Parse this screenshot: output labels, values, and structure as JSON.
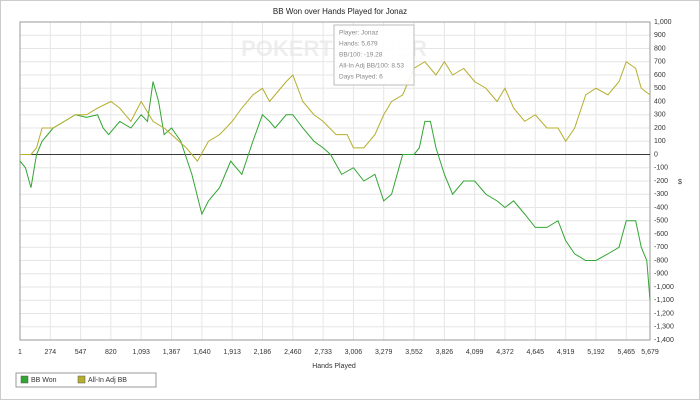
{
  "chart_data": {
    "type": "line",
    "title": "BB Won over Hands Played for Jonaz",
    "watermark": "POKERTRACKER",
    "x_label": "Hands Played",
    "y_label": "$",
    "annotations": [
      "Player: Jonaz",
      "Hands: 5,679",
      "BB/100: -19.28",
      "All-In Adj BB/100: 8.53",
      "Days Played: 6"
    ],
    "legend": "bottom-left",
    "grid": true,
    "xlim": [
      1,
      5679
    ],
    "xticks": [
      1,
      274,
      547,
      820,
      {
        "value": 1093,
        "label": "1,093"
      },
      {
        "value": 1367,
        "label": "1,367"
      },
      {
        "value": 1640,
        "label": "1,640"
      },
      {
        "value": 1913,
        "label": "1,913"
      },
      {
        "value": 2186,
        "label": "2,186"
      },
      {
        "value": 2460,
        "label": "2,460"
      },
      {
        "value": 2733,
        "label": "2,733"
      },
      {
        "value": 3006,
        "label": "3,006"
      },
      {
        "value": 3279,
        "label": "3,279"
      },
      {
        "value": 3552,
        "label": "3,552"
      },
      {
        "value": 3826,
        "label": "3,826"
      },
      {
        "value": 4099,
        "label": "4,099"
      },
      {
        "value": 4372,
        "label": "4,372"
      },
      {
        "value": 4645,
        "label": "4,645"
      },
      {
        "value": 4919,
        "label": "4,919"
      },
      {
        "value": 5192,
        "label": "5,192"
      },
      {
        "value": 5465,
        "label": "5,465"
      },
      {
        "value": 5679,
        "label": "5,679"
      }
    ],
    "ylim": [
      -1400,
      1000
    ],
    "yticks": [
      {
        "value": -1400,
        "label": "-1,400"
      },
      {
        "value": -1300,
        "label": "-1,300"
      },
      {
        "value": -1200,
        "label": "-1,200"
      },
      {
        "value": -1100,
        "label": "-1,100"
      },
      {
        "value": -1000,
        "label": "-1,000"
      },
      -900,
      -800,
      -700,
      -600,
      -500,
      -400,
      -300,
      -200,
      -100,
      0,
      100,
      200,
      300,
      400,
      500,
      600,
      700,
      800,
      900,
      {
        "value": 1000,
        "label": "1,000"
      }
    ],
    "series": [
      {
        "name": "BB Won",
        "color": "#33a532",
        "x": [
          1,
          50,
          100,
          150,
          200,
          300,
          400,
          500,
          600,
          700,
          750,
          800,
          900,
          1000,
          1093,
          1150,
          1200,
          1250,
          1300,
          1367,
          1450,
          1550,
          1640,
          1700,
          1800,
          1900,
          2000,
          2100,
          2186,
          2250,
          2300,
          2400,
          2460,
          2550,
          2650,
          2733,
          2800,
          2900,
          3006,
          3100,
          3200,
          3279,
          3350,
          3450,
          3552,
          3600,
          3650,
          3700,
          3750,
          3826,
          3900,
          4000,
          4099,
          4200,
          4300,
          4372,
          4450,
          4550,
          4645,
          4750,
          4850,
          4919,
          5000,
          5100,
          5192,
          5300,
          5400,
          5465,
          5550,
          5600,
          5650,
          5679
        ],
        "values": [
          -50,
          -100,
          -250,
          0,
          100,
          200,
          250,
          300,
          280,
          300,
          200,
          150,
          250,
          200,
          300,
          250,
          550,
          400,
          150,
          200,
          100,
          -150,
          -450,
          -350,
          -250,
          -50,
          -150,
          100,
          300,
          250,
          200,
          300,
          300,
          200,
          100,
          50,
          0,
          -150,
          -100,
          -200,
          -150,
          -350,
          -300,
          0,
          0,
          50,
          250,
          250,
          50,
          -150,
          -300,
          -200,
          -200,
          -300,
          -350,
          -400,
          -350,
          -450,
          -550,
          -550,
          -500,
          -650,
          -750,
          -800,
          -800,
          -750,
          -700,
          -500,
          -500,
          -700,
          -800,
          -1100
        ]
      },
      {
        "name": "All-In Adj BB",
        "color": "#b5ae2e",
        "x": [
          1,
          100,
          150,
          200,
          300,
          400,
          500,
          600,
          700,
          820,
          900,
          1000,
          1093,
          1200,
          1300,
          1367,
          1500,
          1600,
          1700,
          1800,
          1913,
          2000,
          2100,
          2186,
          2250,
          2300,
          2400,
          2460,
          2550,
          2650,
          2733,
          2850,
          2950,
          3006,
          3100,
          3200,
          3279,
          3350,
          3450,
          3552,
          3650,
          3750,
          3826,
          3900,
          4000,
          4099,
          4200,
          4300,
          4372,
          4450,
          4550,
          4645,
          4750,
          4850,
          4919,
          5000,
          5100,
          5192,
          5300,
          5400,
          5465,
          5550,
          5600,
          5679
        ],
        "values": [
          0,
          0,
          50,
          200,
          200,
          250,
          300,
          300,
          350,
          400,
          350,
          250,
          400,
          250,
          200,
          150,
          50,
          -50,
          100,
          150,
          250,
          350,
          450,
          500,
          400,
          450,
          550,
          600,
          400,
          300,
          250,
          150,
          150,
          50,
          50,
          150,
          300,
          400,
          450,
          650,
          700,
          600,
          700,
          600,
          650,
          550,
          500,
          400,
          500,
          350,
          250,
          300,
          200,
          200,
          100,
          200,
          450,
          500,
          450,
          550,
          700,
          650,
          500,
          450
        ]
      }
    ]
  }
}
